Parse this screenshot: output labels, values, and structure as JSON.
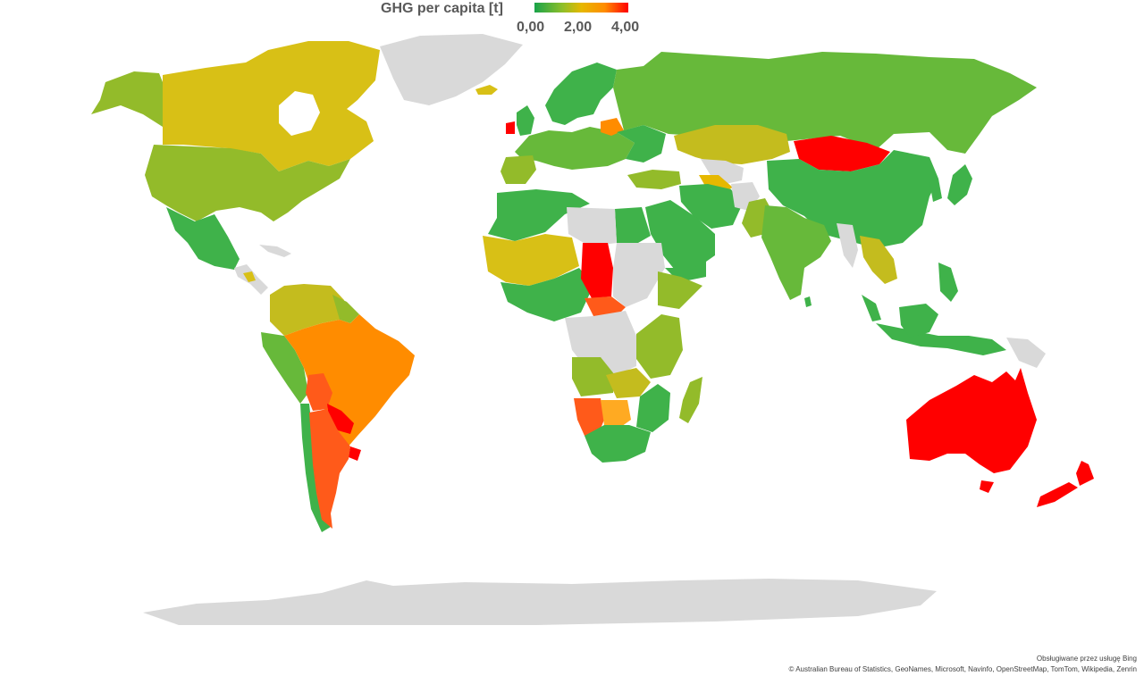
{
  "legend": {
    "title": "GHG per capita [t]",
    "ticks": [
      "0,00",
      "2,00",
      "4,00"
    ],
    "min": 0,
    "max": 4,
    "gradient_colors": [
      "#19a34a",
      "#8fbf2a",
      "#e6b800",
      "#ff8c00",
      "#ff0000"
    ]
  },
  "colors": {
    "no_data": "#d9d9d9",
    "green": "#3fb24a",
    "light_green": "#67b93a",
    "olive": "#93bb2a",
    "yellow_olive": "#c4bc1e",
    "gold": "#d8c016",
    "orange": "#ff8c00",
    "red_orange": "#ff5a1a",
    "red": "#ff0000"
  },
  "credits": {
    "provider": "Obsługiwane przez usługę Bing",
    "sources": "© Australian Bureau of Statistics, GeoNames, Microsoft, Navinfo, OpenStreetMap, TomTom, Wikipedia, Zenrin"
  }
}
